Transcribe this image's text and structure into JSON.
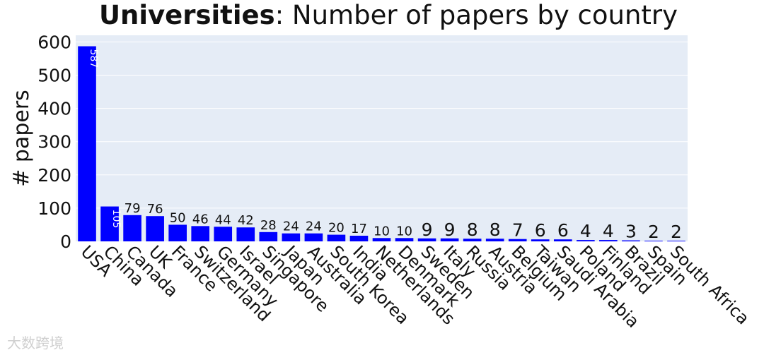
{
  "title": {
    "bold": "Universities",
    "rest": ": Number of papers by country"
  },
  "watermark": "大数跨境",
  "colors": {
    "bar": "#0000ff",
    "plot_bg": "#e5ecf6",
    "grid": "#ffffff",
    "text": "#111111"
  },
  "chart_data": {
    "type": "bar",
    "title": "Universities: Number of papers by country",
    "xlabel": "",
    "ylabel": "# papers",
    "ylim": [
      0,
      620
    ],
    "yticks": [
      0,
      100,
      200,
      300,
      400,
      500,
      600
    ],
    "grid": true,
    "categories": [
      "USA",
      "China",
      "Canada",
      "UK",
      "France",
      "Switzerland",
      "Germany",
      "Israel",
      "Singapore",
      "Japan",
      "Australia",
      "South Korea",
      "India",
      "Netherlands",
      "Denmark",
      "Sweden",
      "Italy",
      "Russia",
      "Austria",
      "Belgium",
      "Taiwan",
      "Saudi Arabia",
      "Poland",
      "Finland",
      "Brazil",
      "Spain",
      "South Africa"
    ],
    "values": [
      587,
      105,
      79,
      76,
      50,
      46,
      44,
      42,
      28,
      24,
      24,
      20,
      17,
      10,
      10,
      9,
      9,
      8,
      8,
      7,
      6,
      6,
      4,
      4,
      3,
      2,
      2
    ]
  }
}
